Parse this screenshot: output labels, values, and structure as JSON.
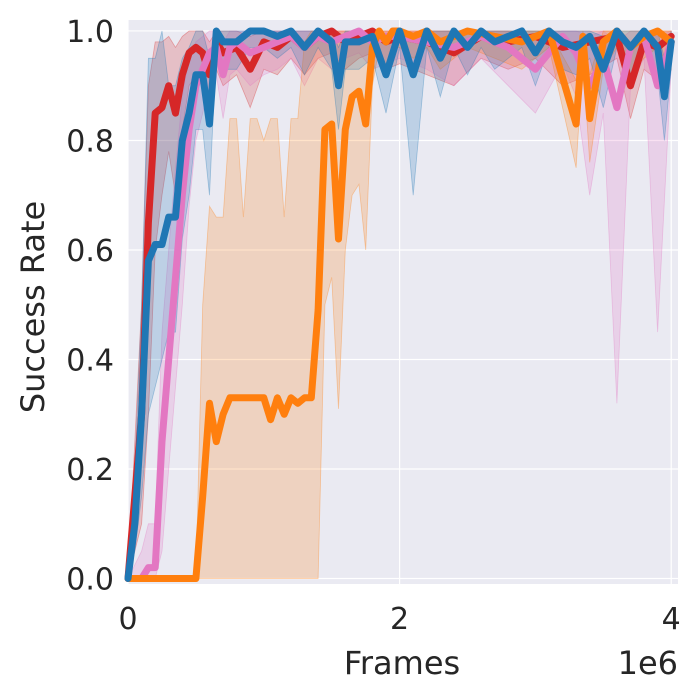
{
  "chart_data": {
    "type": "line",
    "title": "",
    "xlabel": "Frames",
    "ylabel": "Success Rate",
    "x_offset_label": "1e6",
    "xlim": [
      0,
      4.05
    ],
    "ylim": [
      -0.01,
      1.02
    ],
    "xticks": [
      0,
      2,
      4
    ],
    "xtick_labels": [
      "0",
      "2",
      "4"
    ],
    "yticks": [
      0.0,
      0.2,
      0.4,
      0.6,
      0.8,
      1.0
    ],
    "ytick_labels": [
      "0.0",
      "0.2",
      "0.4",
      "0.6",
      "0.8",
      "1.0"
    ],
    "grid": true,
    "legend": "none",
    "background": "#eaeaf2",
    "series": [
      {
        "color": "#d62728",
        "x": [
          0,
          0.1,
          0.15,
          0.2,
          0.25,
          0.3,
          0.35,
          0.4,
          0.45,
          0.5,
          0.55,
          0.6,
          0.65,
          0.7,
          0.8,
          0.9,
          1.0,
          1.1,
          1.2,
          1.3,
          1.4,
          1.5,
          1.6,
          1.7,
          1.8,
          1.9,
          2.0,
          2.2,
          2.4,
          2.6,
          2.8,
          3.0,
          3.2,
          3.4,
          3.6,
          3.7,
          3.8,
          3.9,
          4.0
        ],
        "y": [
          0,
          0.3,
          0.65,
          0.85,
          0.86,
          0.9,
          0.85,
          0.92,
          0.96,
          0.97,
          0.96,
          0.92,
          0.98,
          0.96,
          0.97,
          0.93,
          0.98,
          0.97,
          0.99,
          0.97,
          0.99,
          1.0,
          0.98,
          0.99,
          1.0,
          0.98,
          0.99,
          0.98,
          0.96,
          0.99,
          0.98,
          0.99,
          0.97,
          0.98,
          0.99,
          0.9,
          0.98,
          0.97,
          0.99
        ],
        "lower": [
          0,
          0.1,
          0.3,
          0.6,
          0.7,
          0.78,
          0.7,
          0.82,
          0.9,
          0.92,
          0.9,
          0.85,
          0.93,
          0.9,
          0.92,
          0.86,
          0.93,
          0.92,
          0.95,
          0.92,
          0.95,
          0.96,
          0.93,
          0.95,
          0.96,
          0.93,
          0.94,
          0.92,
          0.9,
          0.95,
          0.93,
          0.95,
          0.9,
          0.92,
          0.95,
          0.84,
          0.93,
          0.91,
          0.95
        ],
        "upper": [
          0,
          0.5,
          0.9,
          0.98,
          0.98,
          0.99,
          0.97,
          0.99,
          1.0,
          1.0,
          1.0,
          0.98,
          1.0,
          1.0,
          1.0,
          0.99,
          1.0,
          1.0,
          1.0,
          1.0,
          1.0,
          1.0,
          1.0,
          1.0,
          1.0,
          1.0,
          1.0,
          1.0,
          1.0,
          1.0,
          1.0,
          1.0,
          1.0,
          1.0,
          1.0,
          0.97,
          1.0,
          1.0,
          1.0
        ]
      },
      {
        "color": "#e377c2",
        "x": [
          0,
          0.1,
          0.15,
          0.2,
          0.25,
          0.3,
          0.35,
          0.4,
          0.45,
          0.5,
          0.55,
          0.6,
          0.65,
          0.7,
          0.75,
          0.8,
          0.9,
          1.0,
          1.1,
          1.2,
          1.3,
          1.4,
          1.5,
          1.6,
          1.7,
          1.8,
          1.9,
          2.0,
          2.2,
          2.4,
          2.6,
          2.8,
          3.0,
          3.2,
          3.3,
          3.4,
          3.5,
          3.6,
          3.7,
          3.8,
          3.9,
          4.0
        ],
        "y": [
          0,
          0.0,
          0.02,
          0.02,
          0.25,
          0.4,
          0.55,
          0.7,
          0.82,
          0.9,
          0.93,
          0.96,
          0.97,
          0.92,
          0.97,
          0.98,
          0.96,
          0.97,
          0.98,
          0.99,
          0.97,
          0.99,
          0.98,
          0.99,
          1.0,
          0.98,
          0.99,
          0.99,
          0.98,
          0.97,
          0.99,
          0.97,
          0.93,
          0.99,
          0.96,
          0.9,
          0.95,
          0.86,
          0.97,
          0.99,
          0.9,
          0.98
        ],
        "lower": [
          0,
          0.0,
          0.0,
          0.0,
          0.05,
          0.2,
          0.35,
          0.5,
          0.68,
          0.8,
          0.85,
          0.9,
          0.92,
          0.84,
          0.92,
          0.93,
          0.9,
          0.92,
          0.93,
          0.95,
          0.9,
          0.95,
          0.93,
          0.95,
          0.96,
          0.93,
          0.94,
          0.95,
          0.93,
          0.9,
          0.95,
          0.9,
          0.85,
          0.94,
          0.88,
          0.7,
          0.85,
          0.32,
          0.9,
          0.95,
          0.45,
          0.93
        ],
        "upper": [
          0,
          0.05,
          0.1,
          0.1,
          0.45,
          0.6,
          0.75,
          0.88,
          0.95,
          0.98,
          0.99,
          1.0,
          1.0,
          0.98,
          1.0,
          1.0,
          1.0,
          1.0,
          1.0,
          1.0,
          1.0,
          1.0,
          1.0,
          1.0,
          1.0,
          1.0,
          1.0,
          1.0,
          1.0,
          1.0,
          1.0,
          1.0,
          0.99,
          1.0,
          1.0,
          0.99,
          1.0,
          0.98,
          1.0,
          1.0,
          0.99,
          1.0
        ]
      },
      {
        "color": "#ff7f0e",
        "x": [
          0,
          0.2,
          0.4,
          0.5,
          0.55,
          0.6,
          0.65,
          0.7,
          0.75,
          0.8,
          0.85,
          0.9,
          0.95,
          1.0,
          1.05,
          1.1,
          1.15,
          1.2,
          1.25,
          1.3,
          1.35,
          1.4,
          1.45,
          1.5,
          1.55,
          1.6,
          1.65,
          1.7,
          1.75,
          1.8,
          1.85,
          1.9,
          1.95,
          2.0,
          2.1,
          2.2,
          2.3,
          2.5,
          2.7,
          2.9,
          3.1,
          3.3,
          3.35,
          3.4,
          3.5,
          3.6,
          3.7,
          3.8,
          3.9,
          4.0
        ],
        "y": [
          0,
          0,
          0,
          0,
          0.15,
          0.32,
          0.25,
          0.3,
          0.33,
          0.33,
          0.33,
          0.33,
          0.33,
          0.33,
          0.29,
          0.33,
          0.3,
          0.33,
          0.32,
          0.33,
          0.33,
          0.49,
          0.82,
          0.83,
          0.62,
          0.82,
          0.88,
          0.89,
          0.83,
          0.97,
          1.0,
          0.98,
          1.0,
          1.0,
          0.99,
          1.0,
          0.98,
          1.0,
          0.99,
          0.98,
          1.0,
          0.83,
          0.99,
          0.84,
          0.98,
          1.0,
          0.97,
          0.99,
          1.0,
          0.98
        ],
        "lower": [
          0,
          0,
          0,
          0,
          0.0,
          0.0,
          0.0,
          0.0,
          0.0,
          0.0,
          0.0,
          0.0,
          0.0,
          0.0,
          0.0,
          0.0,
          0.0,
          0.0,
          0.0,
          0.0,
          0.0,
          0.0,
          0.5,
          0.55,
          0.31,
          0.6,
          0.7,
          0.72,
          0.6,
          0.9,
          0.97,
          0.93,
          0.97,
          0.97,
          0.95,
          0.97,
          0.93,
          0.97,
          0.95,
          0.93,
          0.97,
          0.75,
          0.95,
          0.76,
          0.93,
          0.97,
          0.92,
          0.95,
          0.97,
          0.93
        ],
        "upper": [
          0,
          0,
          0,
          0,
          0.5,
          0.68,
          0.66,
          0.66,
          0.84,
          0.84,
          0.66,
          0.84,
          0.84,
          0.8,
          0.84,
          0.84,
          0.66,
          0.84,
          0.84,
          0.98,
          1.0,
          1.0,
          1.0,
          1.0,
          1.0,
          1.0,
          1.0,
          1.0,
          1.0,
          1.0,
          1.0,
          1.0,
          1.0,
          1.0,
          1.0,
          1.0,
          1.0,
          1.0,
          1.0,
          1.0,
          1.0,
          0.91,
          1.0,
          0.92,
          1.0,
          1.0,
          1.0,
          1.0,
          1.0,
          1.0
        ]
      },
      {
        "color": "#1f77b4",
        "x": [
          0,
          0.05,
          0.1,
          0.15,
          0.2,
          0.25,
          0.3,
          0.35,
          0.4,
          0.45,
          0.5,
          0.55,
          0.6,
          0.65,
          0.7,
          0.8,
          0.9,
          1.0,
          1.1,
          1.2,
          1.3,
          1.4,
          1.5,
          1.55,
          1.6,
          1.7,
          1.8,
          1.9,
          2.0,
          2.1,
          2.2,
          2.3,
          2.4,
          2.5,
          2.6,
          2.7,
          2.8,
          2.9,
          3.0,
          3.1,
          3.2,
          3.3,
          3.4,
          3.5,
          3.6,
          3.7,
          3.8,
          3.9,
          3.95,
          4.0
        ],
        "y": [
          0,
          0.1,
          0.3,
          0.58,
          0.61,
          0.61,
          0.66,
          0.66,
          0.8,
          0.85,
          0.92,
          0.92,
          0.83,
          1.0,
          0.98,
          0.98,
          1.0,
          1.0,
          0.99,
          1.0,
          0.97,
          1.0,
          0.98,
          0.9,
          0.98,
          0.98,
          0.99,
          0.92,
          1.0,
          0.92,
          1.0,
          0.95,
          1.0,
          0.97,
          1.0,
          0.98,
          0.99,
          1.0,
          0.96,
          1.0,
          0.98,
          0.97,
          0.99,
          0.93,
          1.0,
          0.97,
          1.0,
          0.97,
          0.88,
          0.98
        ],
        "lower": [
          0,
          0.05,
          0.15,
          0.3,
          0.35,
          0.4,
          0.45,
          0.45,
          0.62,
          0.7,
          0.82,
          0.82,
          0.7,
          0.97,
          0.93,
          0.93,
          0.97,
          0.97,
          0.95,
          0.97,
          0.92,
          0.97,
          0.93,
          0.82,
          0.93,
          0.93,
          0.95,
          0.85,
          0.97,
          0.7,
          0.97,
          0.88,
          0.97,
          0.92,
          0.97,
          0.93,
          0.95,
          0.97,
          0.9,
          0.97,
          0.93,
          0.92,
          0.95,
          0.86,
          0.97,
          0.92,
          0.97,
          0.92,
          0.8,
          0.93
        ],
        "upper": [
          0,
          0.2,
          0.5,
          0.95,
          0.95,
          1.0,
          0.9,
          0.9,
          0.95,
          0.97,
          1.0,
          1.0,
          0.95,
          1.0,
          1.0,
          1.0,
          1.0,
          1.0,
          1.0,
          1.0,
          1.0,
          1.0,
          1.0,
          0.97,
          1.0,
          1.0,
          1.0,
          0.98,
          1.0,
          0.99,
          1.0,
          1.0,
          1.0,
          1.0,
          1.0,
          1.0,
          1.0,
          1.0,
          1.0,
          1.0,
          1.0,
          1.0,
          1.0,
          0.99,
          1.0,
          1.0,
          1.0,
          1.0,
          0.95,
          1.0
        ]
      }
    ]
  }
}
